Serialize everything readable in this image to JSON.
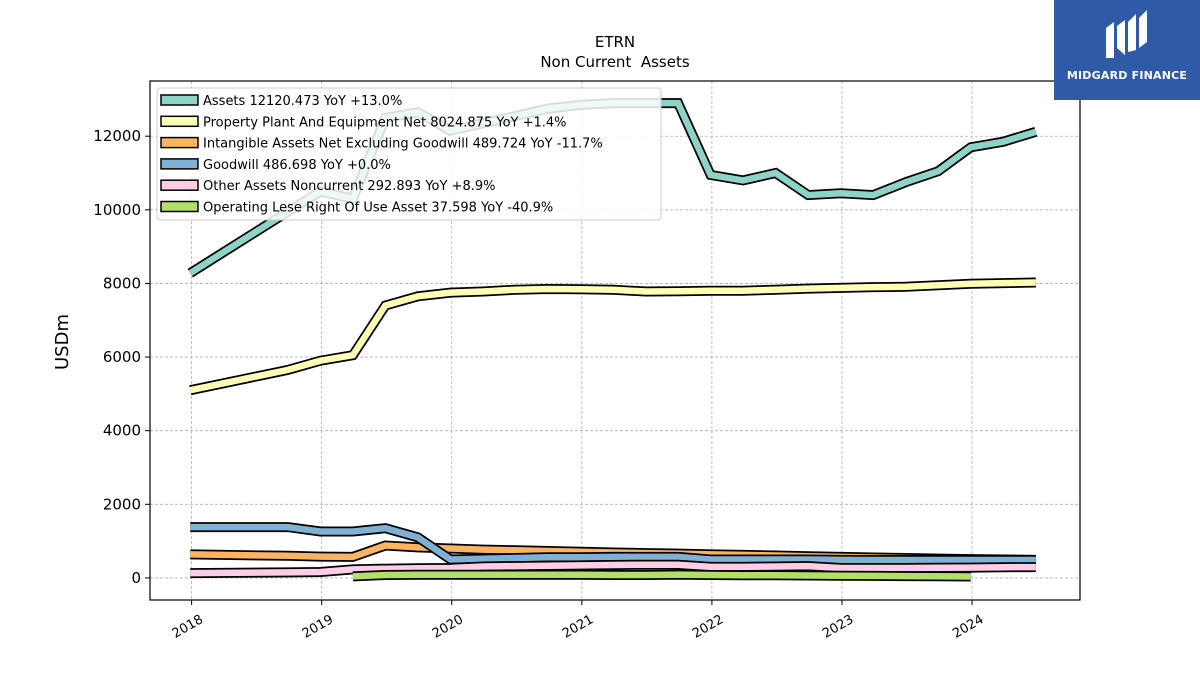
{
  "brand": {
    "name": "MIDGARD FINANCE",
    "bg_color": "#2e5aa8"
  },
  "chart_data": {
    "type": "line",
    "title": "ETRN",
    "subtitle": "Non Current  Assets",
    "xlabel": "",
    "ylabel": "USDm",
    "xlim": [
      2017.68,
      2024.83
    ],
    "ylim": [
      -600,
      13500
    ],
    "y_ticks": [
      0,
      2000,
      4000,
      6000,
      8000,
      10000,
      12000
    ],
    "x_ticks": [
      2018,
      2019,
      2020,
      2021,
      2022,
      2023,
      2024
    ],
    "grid": true,
    "legend_position": "top-left",
    "series": [
      {
        "name": "Assets",
        "legend": "Assets  12120.473 YoY +13.0%",
        "color": "#8dd3c7",
        "x": [
          2017.99,
          2018.74,
          2018.99,
          2019.24,
          2019.49,
          2019.74,
          2019.99,
          2020.24,
          2020.49,
          2020.74,
          2020.99,
          2021.24,
          2021.49,
          2021.74,
          2021.99,
          2022.24,
          2022.49,
          2022.74,
          2022.99,
          2023.24,
          2023.49,
          2023.74,
          2023.99,
          2024.24,
          2024.49
        ],
        "y": [
          8280,
          9950,
          10500,
          10300,
          12500,
          12650,
          12150,
          12350,
          12550,
          12750,
          12850,
          12900,
          12900,
          12900,
          10950,
          10800,
          11000,
          10400,
          10450,
          10400,
          10750,
          11050,
          11700,
          11850,
          12120.473
        ]
      },
      {
        "name": "Property Plant And Equipment Net",
        "legend": "Property Plant And Equipment Net  8024.875 YoY +1.4%",
        "color": "#ffffb3",
        "x": [
          2017.99,
          2018.74,
          2018.99,
          2019.24,
          2019.49,
          2019.74,
          2019.99,
          2020.24,
          2020.49,
          2020.74,
          2020.99,
          2021.24,
          2021.49,
          2021.74,
          2021.99,
          2022.24,
          2022.49,
          2022.74,
          2022.99,
          2023.24,
          2023.49,
          2023.74,
          2023.99,
          2024.24,
          2024.49
        ],
        "y": [
          5100,
          5650,
          5900,
          6050,
          7400,
          7650,
          7750,
          7780,
          7830,
          7850,
          7840,
          7830,
          7780,
          7790,
          7800,
          7800,
          7830,
          7860,
          7880,
          7900,
          7910,
          7950,
          7990,
          8010,
          8024.875
        ]
      },
      {
        "name": "Intangible Assets Net Excluding Goodwill",
        "legend": "Intangible Assets Net Excluding Goodwill  489.724 YoY -11.7%",
        "color": "#fdb462",
        "x": [
          2017.99,
          2018.74,
          2018.99,
          2019.24,
          2019.49,
          2019.74,
          2019.99,
          2020.24,
          2020.49,
          2020.74,
          2020.99,
          2021.24,
          2021.49,
          2021.74,
          2021.99,
          2022.24,
          2022.49,
          2022.74,
          2022.99,
          2023.24,
          2023.49,
          2023.74,
          2023.99,
          2024.24,
          2024.49
        ],
        "y": [
          640,
          600,
          580,
          570,
          880,
          830,
          800,
          770,
          750,
          730,
          710,
          690,
          675,
          660,
          640,
          625,
          610,
          590,
          570,
          555,
          540,
          525,
          510,
          500,
          489.724
        ]
      },
      {
        "name": "Goodwill",
        "legend": "Goodwill  486.698 YoY +0.0%",
        "color": "#80b1d3",
        "x": [
          2017.99,
          2018.74,
          2018.99,
          2019.24,
          2019.49,
          2019.74,
          2019.99,
          2020.24,
          2020.49,
          2020.74,
          2020.99,
          2021.24,
          2021.49,
          2021.74,
          2021.99,
          2022.24,
          2022.49,
          2022.74,
          2022.99,
          2023.24,
          2023.49,
          2023.74,
          2023.99,
          2024.24,
          2024.49
        ],
        "y": [
          1380,
          1380,
          1260,
          1260,
          1350,
          1100,
          500,
          520,
          540,
          560,
          560,
          570,
          570,
          570,
          500,
          500,
          500,
          500,
          490,
          486.698,
          486.698,
          486.698,
          486.698,
          486.698,
          486.698
        ]
      },
      {
        "name": "Other Assets Noncurrent",
        "legend": "Other Assets Noncurrent  292.893 YoY +8.9%",
        "color": "#fccde5",
        "x": [
          2017.99,
          2018.74,
          2018.99,
          2019.24,
          2019.49,
          2019.74,
          2019.99,
          2020.24,
          2020.49,
          2020.74,
          2020.99,
          2021.24,
          2021.49,
          2021.74,
          2021.99,
          2022.24,
          2022.49,
          2022.74,
          2022.99,
          2023.24,
          2023.49,
          2023.74,
          2023.99,
          2024.24,
          2024.49
        ],
        "y": [
          130,
          150,
          160,
          230,
          250,
          260,
          270,
          310,
          320,
          330,
          340,
          350,
          360,
          360,
          300,
          300,
          310,
          320,
          270,
          270,
          270,
          275,
          280,
          290,
          292.893
        ]
      },
      {
        "name": "Operating Lease Right Of Use Asset",
        "legend": "Operating Lese Right Of Use Asset  37.598 YoY -40.9%",
        "color": "#b3de69",
        "x": [
          2019.24,
          2019.49,
          2019.74,
          2019.99,
          2020.24,
          2020.49,
          2020.74,
          2020.99,
          2021.24,
          2021.49,
          2021.74,
          2021.99,
          2022.24,
          2022.49,
          2022.74,
          2022.99,
          2023.24,
          2023.49,
          2023.74,
          2023.99
        ],
        "y": [
          40,
          80,
          85,
          85,
          85,
          85,
          85,
          85,
          80,
          80,
          90,
          80,
          75,
          70,
          65,
          60,
          55,
          50,
          45,
          37.598
        ]
      }
    ]
  }
}
